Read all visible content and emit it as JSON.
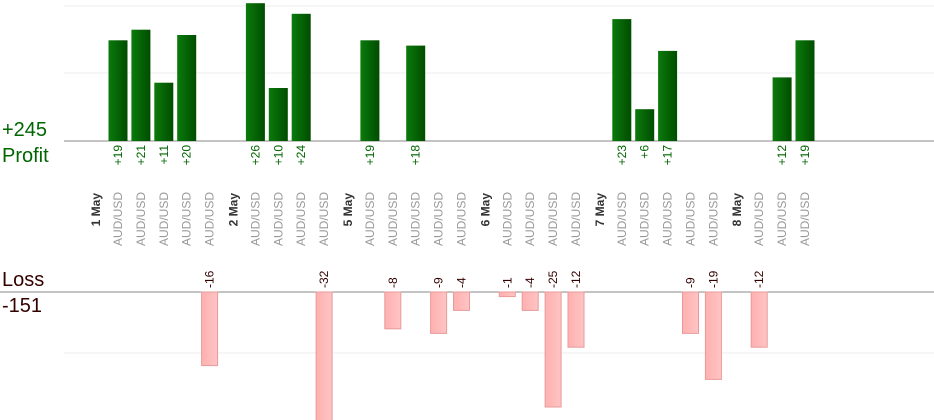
{
  "chart_data": {
    "type": "bar",
    "dates": [
      "1 May",
      "2 May",
      "5 May",
      "6 May",
      "7 May",
      "8 May"
    ],
    "pair_label": "AUD/USD",
    "profit": {
      "label": "Profit",
      "total": "+245",
      "color": "#006600"
    },
    "loss": {
      "label": "Loss",
      "total": "-151",
      "color": "#330000"
    },
    "trades": [
      {
        "date": "1 May",
        "value": 19
      },
      {
        "date": "1 May",
        "value": 21
      },
      {
        "date": "1 May",
        "value": 11
      },
      {
        "date": "1 May",
        "value": 20
      },
      {
        "date": "1 May",
        "value": -16
      },
      {
        "date": "2 May",
        "value": 26
      },
      {
        "date": "2 May",
        "value": 10
      },
      {
        "date": "2 May",
        "value": 24
      },
      {
        "date": "2 May",
        "value": -32
      },
      {
        "date": "5 May",
        "value": 19
      },
      {
        "date": "5 May",
        "value": -8
      },
      {
        "date": "5 May",
        "value": 18
      },
      {
        "date": "5 May",
        "value": -9
      },
      {
        "date": "5 May",
        "value": -4
      },
      {
        "date": "6 May",
        "value": -1
      },
      {
        "date": "6 May",
        "value": -4
      },
      {
        "date": "6 May",
        "value": -25
      },
      {
        "date": "6 May",
        "value": -12
      },
      {
        "date": "7 May",
        "value": 23
      },
      {
        "date": "7 May",
        "value": 6
      },
      {
        "date": "7 May",
        "value": 17
      },
      {
        "date": "7 May",
        "value": -9
      },
      {
        "date": "7 May",
        "value": -19
      },
      {
        "date": "8 May",
        "value": -12
      },
      {
        "date": "8 May",
        "value": 12
      },
      {
        "date": "8 May",
        "value": 19
      }
    ],
    "ylim": [
      -25,
      26
    ],
    "grid": true
  }
}
